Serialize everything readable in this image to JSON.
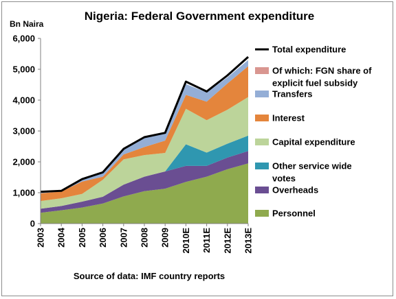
{
  "chart_data": {
    "type": "area",
    "title": "Nigeria: Federal Government expenditure",
    "ylabel": "Bn Naira",
    "source": "Source of data: IMF country reports",
    "ylim": [
      0,
      6000
    ],
    "yticks": [
      "0",
      "1,000",
      "2,000",
      "3,000",
      "4,000",
      "5,000",
      "6,000"
    ],
    "ytick_values": [
      0,
      1000,
      2000,
      3000,
      4000,
      5000,
      6000
    ],
    "grid": false,
    "legend_position": "right",
    "categories": [
      "2003",
      "2004",
      "2005",
      "2006",
      "2007",
      "2008",
      "2009",
      "2010E",
      "2011E",
      "2012E",
      "2013E"
    ],
    "series": [
      {
        "name": "Personnel",
        "color": "#8faa4e",
        "values": [
          350,
          430,
          520,
          650,
          880,
          1050,
          1130,
          1350,
          1520,
          1760,
          1950
        ]
      },
      {
        "name": "Overheads",
        "color": "#6a4e92",
        "values": [
          130,
          140,
          190,
          220,
          380,
          470,
          560,
          520,
          350,
          380,
          400
        ]
      },
      {
        "name": "Other service wide votes",
        "color": "#2f97b0",
        "values": [
          0,
          0,
          0,
          0,
          0,
          0,
          0,
          700,
          430,
          450,
          500
        ]
      },
      {
        "name": "Capital expenditure",
        "color": "#bcd49a",
        "values": [
          250,
          250,
          250,
          550,
          820,
          700,
          600,
          1150,
          1050,
          1100,
          1250
        ]
      },
      {
        "name": "Interest",
        "color": "#e4853c",
        "values": [
          250,
          220,
          400,
          100,
          160,
          260,
          400,
          450,
          600,
          850,
          1000
        ]
      },
      {
        "name": "Transfers",
        "color": "#94aed6",
        "values": [
          50,
          50,
          70,
          130,
          190,
          320,
          270,
          350,
          300,
          200,
          200
        ]
      },
      {
        "name": "Of which: FGN share of explicit fuel subsidy",
        "color": "#d99690",
        "values": [
          0,
          0,
          0,
          0,
          0,
          0,
          0,
          0,
          0,
          0,
          0
        ]
      }
    ],
    "total": {
      "name": "Total expenditure",
      "color": "#000000",
      "values": [
        1030,
        1060,
        1440,
        1660,
        2420,
        2800,
        2940,
        4600,
        4280,
        4800,
        5400
      ]
    },
    "legend": [
      {
        "key": "total",
        "lines": [
          "Total expenditure"
        ]
      },
      {
        "key": "s6",
        "lines": [
          "Of which: FGN share of",
          "explicit fuel subsidy"
        ]
      },
      {
        "key": "s5",
        "lines": [
          "Transfers"
        ]
      },
      {
        "key": "s4",
        "lines": [
          "Interest"
        ]
      },
      {
        "key": "s3",
        "lines": [
          "Capital expenditure"
        ]
      },
      {
        "key": "s2",
        "lines": [
          "Other service wide",
          "votes"
        ]
      },
      {
        "key": "s1",
        "lines": [
          "Overheads"
        ]
      },
      {
        "key": "s0",
        "lines": [
          "Personnel"
        ]
      }
    ]
  }
}
